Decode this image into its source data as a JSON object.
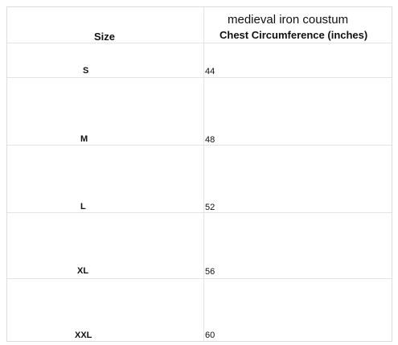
{
  "table": {
    "title": "medieval iron coustum",
    "headers": {
      "size": "Size",
      "chest": "Chest Circumference (inches)"
    },
    "rows": [
      {
        "size": "S",
        "chest": "44"
      },
      {
        "size": "M",
        "chest": "48"
      },
      {
        "size": "L",
        "chest": "52"
      },
      {
        "size": "XL",
        "chest": "56"
      },
      {
        "size": "XXL",
        "chest": "60"
      }
    ]
  }
}
